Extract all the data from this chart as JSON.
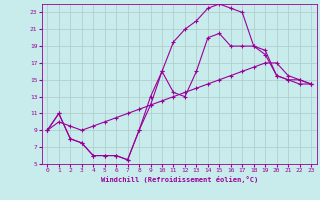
{
  "xlabel": "Windchill (Refroidissement éolien,°C)",
  "bg_color": "#c8ecec",
  "grid_color": "#b0c8c8",
  "line_color": "#990099",
  "xlim": [
    -0.5,
    23.5
  ],
  "ylim": [
    5,
    24
  ],
  "xticks": [
    0,
    1,
    2,
    3,
    4,
    5,
    6,
    7,
    8,
    9,
    10,
    11,
    12,
    13,
    14,
    15,
    16,
    17,
    18,
    19,
    20,
    21,
    22,
    23
  ],
  "yticks": [
    5,
    7,
    9,
    11,
    13,
    15,
    17,
    19,
    21,
    23
  ],
  "line1_x": [
    0,
    1,
    2,
    3,
    4,
    5,
    6,
    7,
    8,
    9,
    10,
    11,
    12,
    13,
    14,
    15,
    16,
    17,
    18,
    19,
    20,
    21,
    22,
    23
  ],
  "line1_y": [
    9,
    11,
    8,
    7.5,
    6,
    6,
    6,
    5.5,
    9,
    13,
    16,
    13.5,
    13,
    16,
    20,
    20.5,
    19,
    19,
    19,
    18,
    15.5,
    15,
    14.5,
    14.5
  ],
  "line2_x": [
    0,
    1,
    2,
    3,
    4,
    5,
    6,
    7,
    8,
    9,
    10,
    11,
    12,
    13,
    14,
    15,
    16,
    17,
    18,
    19,
    20,
    21,
    22,
    23
  ],
  "line2_y": [
    9,
    10,
    9.5,
    9,
    9.5,
    10,
    10.5,
    11,
    11.5,
    12,
    12.5,
    13,
    13.5,
    14,
    14.5,
    15,
    15.5,
    16,
    16.5,
    17,
    17,
    15.5,
    15,
    14.5
  ],
  "line3_x": [
    0,
    1,
    2,
    3,
    4,
    5,
    6,
    7,
    8,
    9,
    10,
    11,
    12,
    13,
    14,
    15,
    16,
    17,
    18,
    19,
    20,
    21,
    22,
    23
  ],
  "line3_y": [
    9,
    11,
    8,
    7.5,
    6,
    6,
    6,
    5.5,
    9,
    12,
    16,
    19.5,
    21,
    22,
    23.5,
    24,
    23.5,
    23,
    19,
    18.5,
    15.5,
    15,
    15,
    14.5
  ]
}
